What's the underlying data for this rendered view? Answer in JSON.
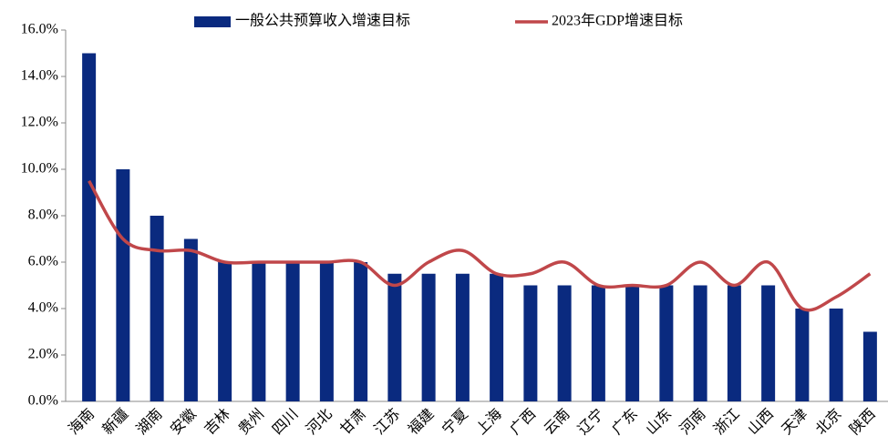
{
  "chart_data": {
    "type": "bar",
    "categories": [
      "海南",
      "新疆",
      "湖南",
      "安徽",
      "吉林",
      "贵州",
      "四川",
      "河北",
      "甘肃",
      "江苏",
      "福建",
      "宁夏",
      "上海",
      "广西",
      "云南",
      "辽宁",
      "广东",
      "山东",
      "河南",
      "浙江",
      "山西",
      "天津",
      "北京",
      "陕西"
    ],
    "series": [
      {
        "name": "一般公共预算收入增速目标",
        "type": "bar",
        "color": "#0a2a7f",
        "values": [
          15,
          10,
          8,
          7,
          6,
          6,
          6,
          6,
          6,
          5.5,
          5.5,
          5.5,
          5.5,
          5,
          5,
          5,
          5,
          5,
          5,
          5,
          5,
          4,
          4,
          3
        ]
      },
      {
        "name": "2023年GDP增速目标",
        "type": "line",
        "color": "#c0474a",
        "values": [
          9.5,
          7,
          6.5,
          6.5,
          6,
          6,
          6,
          6,
          6,
          5,
          6,
          6.5,
          5.5,
          5.5,
          6,
          5,
          5,
          5,
          6,
          5,
          6,
          4,
          4.5,
          5.5
        ]
      }
    ],
    "ylim": [
      0,
      16
    ],
    "yticks": [
      {
        "value": 0,
        "label": "0.0%"
      },
      {
        "value": 2,
        "label": "2.0%"
      },
      {
        "value": 4,
        "label": "4.0%"
      },
      {
        "value": 6,
        "label": "6.0%"
      },
      {
        "value": 8,
        "label": "8.0%"
      },
      {
        "value": 10,
        "label": "10.0%"
      },
      {
        "value": 12,
        "label": "12.0%"
      },
      {
        "value": 14,
        "label": "14.0%"
      },
      {
        "value": 16,
        "label": "16.0%"
      }
    ],
    "legend": "top"
  }
}
